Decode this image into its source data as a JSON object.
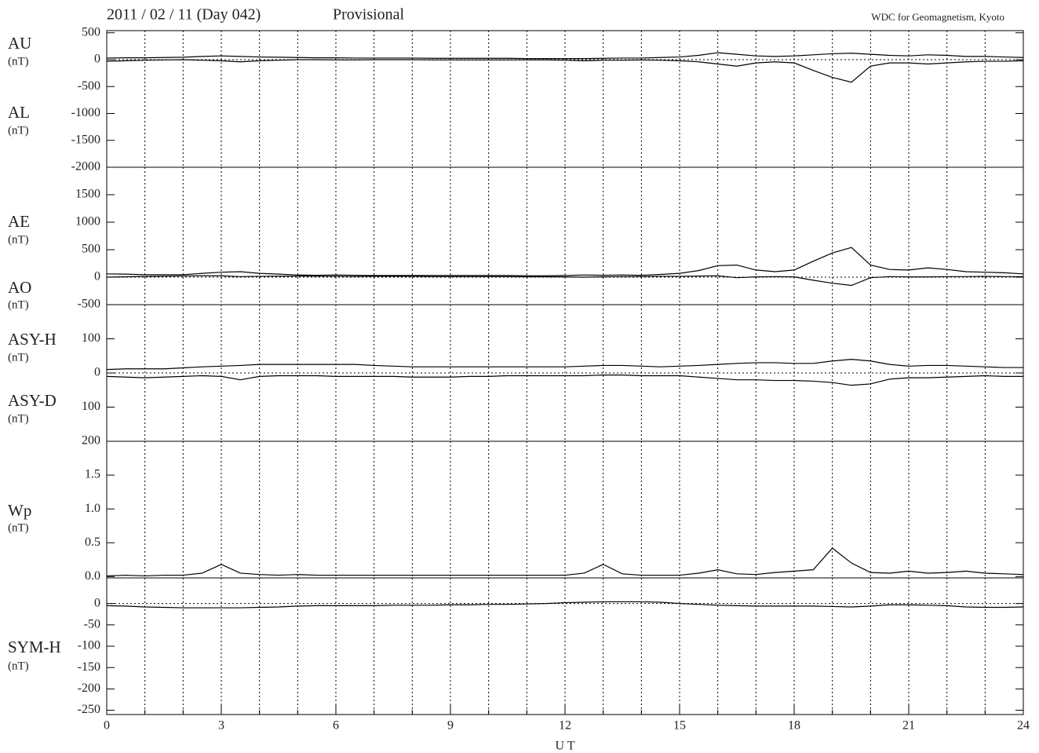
{
  "header": {
    "title": "2011 / 02 / 11  (Day 042)",
    "status": "Provisional",
    "source": "WDC for Geomagnetism, Kyoto"
  },
  "chart_data": [
    {
      "type": "line",
      "unit": "(nT)",
      "xlim": [
        0,
        24
      ],
      "ylim": [
        -2000,
        540
      ],
      "yticks": [
        -2000,
        -1500,
        -1000,
        -500,
        0,
        500
      ],
      "zero_line": true,
      "xgrid": [
        1,
        2,
        3,
        4,
        5,
        6,
        7,
        8,
        9,
        10,
        11,
        12,
        13,
        14,
        15,
        16,
        17,
        18,
        19,
        20,
        21,
        22,
        23
      ],
      "x": [
        0,
        0.5,
        1,
        1.5,
        2,
        2.5,
        3,
        3.5,
        4,
        4.5,
        5,
        5.5,
        6,
        6.5,
        7,
        7.5,
        8,
        8.5,
        9,
        9.5,
        10,
        10.5,
        11,
        11.5,
        12,
        12.5,
        13,
        13.5,
        14,
        14.5,
        15,
        15.5,
        16,
        16.5,
        17,
        17.5,
        18,
        18.5,
        19,
        19.5,
        20,
        20.5,
        21,
        21.5,
        22,
        22.5,
        23,
        23.5,
        24
      ],
      "series": [
        {
          "name": "AU",
          "color": "#000000",
          "values": [
            30,
            35,
            35,
            40,
            45,
            60,
            70,
            60,
            50,
            45,
            40,
            35,
            35,
            30,
            30,
            30,
            30,
            25,
            25,
            25,
            25,
            25,
            20,
            20,
            20,
            20,
            25,
            30,
            30,
            40,
            50,
            80,
            130,
            100,
            70,
            60,
            70,
            90,
            110,
            120,
            100,
            80,
            70,
            90,
            80,
            60,
            60,
            50,
            40
          ]
        },
        {
          "name": "AL",
          "color": "#000000",
          "values": [
            -30,
            -20,
            -10,
            -5,
            0,
            -10,
            -20,
            -40,
            -20,
            -10,
            0,
            0,
            -5,
            -5,
            0,
            0,
            0,
            -5,
            -5,
            -5,
            -5,
            -5,
            -5,
            -5,
            -10,
            -20,
            -10,
            -10,
            -5,
            -10,
            -20,
            -40,
            -80,
            -120,
            -60,
            -40,
            -60,
            -200,
            -330,
            -420,
            -120,
            -60,
            -60,
            -80,
            -60,
            -40,
            -30,
            -30,
            -20
          ]
        }
      ]
    },
    {
      "type": "line",
      "unit": "(nT)",
      "xlim": [
        0,
        24
      ],
      "ylim": [
        -500,
        2000
      ],
      "yticks": [
        -500,
        0,
        500,
        1000,
        1500
      ],
      "zero_line": true,
      "xgrid": [
        1,
        2,
        3,
        4,
        5,
        6,
        7,
        8,
        9,
        10,
        11,
        12,
        13,
        14,
        15,
        16,
        17,
        18,
        19,
        20,
        21,
        22,
        23
      ],
      "x": [
        0,
        0.5,
        1,
        1.5,
        2,
        2.5,
        3,
        3.5,
        4,
        4.5,
        5,
        5.5,
        6,
        6.5,
        7,
        7.5,
        8,
        8.5,
        9,
        9.5,
        10,
        10.5,
        11,
        11.5,
        12,
        12.5,
        13,
        13.5,
        14,
        14.5,
        15,
        15.5,
        16,
        16.5,
        17,
        17.5,
        18,
        18.5,
        19,
        19.5,
        20,
        20.5,
        21,
        21.5,
        22,
        22.5,
        23,
        23.5,
        24
      ],
      "series": [
        {
          "name": "AE",
          "color": "#000000",
          "values": [
            60,
            55,
            45,
            45,
            45,
            70,
            90,
            100,
            70,
            55,
            40,
            35,
            40,
            35,
            30,
            30,
            30,
            30,
            30,
            30,
            30,
            30,
            25,
            25,
            30,
            40,
            35,
            40,
            35,
            50,
            70,
            120,
            210,
            220,
            130,
            100,
            130,
            290,
            440,
            540,
            220,
            140,
            130,
            170,
            140,
            100,
            90,
            80,
            60
          ]
        },
        {
          "name": "AO",
          "color": "#000000",
          "values": [
            0,
            7.5,
            12.5,
            17.5,
            22.5,
            25,
            25,
            10,
            15,
            17.5,
            20,
            17.5,
            15,
            12.5,
            15,
            15,
            15,
            10,
            10,
            10,
            10,
            10,
            7.5,
            7.5,
            5,
            0,
            7.5,
            10,
            12.5,
            15,
            15,
            20,
            25,
            -10,
            5,
            10,
            5,
            -55,
            -110,
            -150,
            -10,
            10,
            5,
            5,
            10,
            10,
            15,
            10,
            10
          ]
        }
      ]
    },
    {
      "type": "line",
      "unit": "(nT)",
      "xlim": [
        0,
        24
      ],
      "ylim": [
        -200,
        200
      ],
      "yticks": [
        {
          "value": -200,
          "label": "200"
        },
        {
          "value": -100,
          "label": "100"
        },
        0,
        100
      ],
      "zero_line": true,
      "xgrid": [
        1,
        2,
        3,
        4,
        5,
        6,
        7,
        8,
        9,
        10,
        11,
        12,
        13,
        14,
        15,
        16,
        17,
        18,
        19,
        20,
        21,
        22,
        23
      ],
      "x": [
        0,
        0.5,
        1,
        1.5,
        2,
        2.5,
        3,
        3.5,
        4,
        4.5,
        5,
        5.5,
        6,
        6.5,
        7,
        7.5,
        8,
        8.5,
        9,
        9.5,
        10,
        10.5,
        11,
        11.5,
        12,
        12.5,
        13,
        13.5,
        14,
        14.5,
        15,
        15.5,
        16,
        16.5,
        17,
        17.5,
        18,
        18.5,
        19,
        19.5,
        20,
        20.5,
        21,
        21.5,
        22,
        22.5,
        23,
        23.5,
        24
      ],
      "series": [
        {
          "name": "ASY-H",
          "color": "#000000",
          "values": [
            10,
            12,
            12,
            12,
            15,
            18,
            20,
            22,
            25,
            25,
            25,
            25,
            25,
            25,
            22,
            20,
            18,
            18,
            18,
            18,
            18,
            18,
            18,
            18,
            18,
            20,
            22,
            22,
            20,
            18,
            20,
            22,
            25,
            28,
            30,
            30,
            28,
            28,
            35,
            40,
            35,
            25,
            20,
            22,
            22,
            20,
            18,
            16,
            16
          ]
        },
        {
          "name": "ASY-D",
          "color": "#000000",
          "values": [
            -10,
            -12,
            -14,
            -12,
            -10,
            -8,
            -10,
            -20,
            -10,
            -8,
            -8,
            -8,
            -10,
            -10,
            -10,
            -10,
            -12,
            -12,
            -12,
            -10,
            -10,
            -8,
            -8,
            -8,
            -8,
            -8,
            -6,
            -6,
            -8,
            -8,
            -8,
            -12,
            -16,
            -20,
            -20,
            -22,
            -22,
            -24,
            -28,
            -36,
            -32,
            -18,
            -14,
            -14,
            -12,
            -10,
            -8,
            -10,
            -10
          ]
        }
      ]
    },
    {
      "type": "line",
      "unit": "(nT)",
      "xlim": [
        0,
        24
      ],
      "ylim": [
        -0.02,
        2.0
      ],
      "yticks": [
        {
          "value": 0,
          "label": "0.0"
        },
        {
          "value": 0.5,
          "label": "0.5"
        },
        {
          "value": 1,
          "label": "1.0"
        },
        {
          "value": 1.5,
          "label": "1.5"
        }
      ],
      "zero_line": false,
      "xgrid": [
        1,
        2,
        3,
        4,
        5,
        6,
        7,
        8,
        9,
        10,
        11,
        12,
        13,
        14,
        15,
        16,
        17,
        18,
        19,
        20,
        21,
        22,
        23
      ],
      "x": [
        0,
        0.5,
        1,
        1.5,
        2,
        2.5,
        3,
        3.5,
        4,
        4.5,
        5,
        5.5,
        6,
        6.5,
        7,
        7.5,
        8,
        8.5,
        9,
        9.5,
        10,
        10.5,
        11,
        11.5,
        12,
        12.5,
        13,
        13.5,
        14,
        14.5,
        15,
        15.5,
        16,
        16.5,
        17,
        17.5,
        18,
        18.5,
        19,
        19.5,
        20,
        20.5,
        21,
        21.5,
        22,
        22.5,
        23,
        23.5,
        24
      ],
      "series": [
        {
          "name": "Wp",
          "color": "#000000",
          "values": [
            0.01,
            0.02,
            0.01,
            0.02,
            0.02,
            0.05,
            0.18,
            0.05,
            0.03,
            0.02,
            0.03,
            0.02,
            0.02,
            0.02,
            0.02,
            0.02,
            0.02,
            0.02,
            0.02,
            0.02,
            0.02,
            0.02,
            0.02,
            0.02,
            0.02,
            0.05,
            0.18,
            0.04,
            0.02,
            0.02,
            0.02,
            0.05,
            0.1,
            0.04,
            0.03,
            0.06,
            0.08,
            0.1,
            0.42,
            0.2,
            0.06,
            0.05,
            0.08,
            0.05,
            0.06,
            0.08,
            0.05,
            0.04,
            0.03
          ]
        }
      ]
    },
    {
      "type": "line",
      "unit": "(nT)",
      "xlim": [
        0,
        24
      ],
      "ylim": [
        -260,
        60
      ],
      "yticks": [
        -250,
        -200,
        -150,
        -100,
        -50,
        0
      ],
      "zero_line": true,
      "xgrid": [
        1,
        2,
        3,
        4,
        5,
        6,
        7,
        8,
        9,
        10,
        11,
        12,
        13,
        14,
        15,
        16,
        17,
        18,
        19,
        20,
        21,
        22,
        23
      ],
      "xticks": [
        0,
        3,
        6,
        9,
        12,
        15,
        18,
        21,
        24
      ],
      "xlabel": "U T",
      "x": [
        0,
        0.5,
        1,
        1.5,
        2,
        2.5,
        3,
        3.5,
        4,
        4.5,
        5,
        5.5,
        6,
        6.5,
        7,
        7.5,
        8,
        8.5,
        9,
        9.5,
        10,
        10.5,
        11,
        11.5,
        12,
        12.5,
        13,
        13.5,
        14,
        14.5,
        15,
        15.5,
        16,
        16.5,
        17,
        17.5,
        18,
        18.5,
        19,
        19.5,
        20,
        20.5,
        21,
        21.5,
        22,
        22.5,
        23,
        23.5,
        24
      ],
      "series": [
        {
          "name": "SYM-H",
          "color": "#000000",
          "values": [
            -5,
            -6,
            -8,
            -9,
            -10,
            -10,
            -10,
            -10,
            -9,
            -8,
            -6,
            -5,
            -5,
            -5,
            -5,
            -4,
            -4,
            -4,
            -3,
            -3,
            -2,
            -2,
            -1,
            0,
            2,
            3,
            4,
            4,
            4,
            3,
            0,
            -2,
            -4,
            -5,
            -6,
            -6,
            -6,
            -6,
            -7,
            -8,
            -6,
            -3,
            -3,
            -4,
            -5,
            -8,
            -9,
            -9,
            -8
          ]
        }
      ]
    }
  ]
}
